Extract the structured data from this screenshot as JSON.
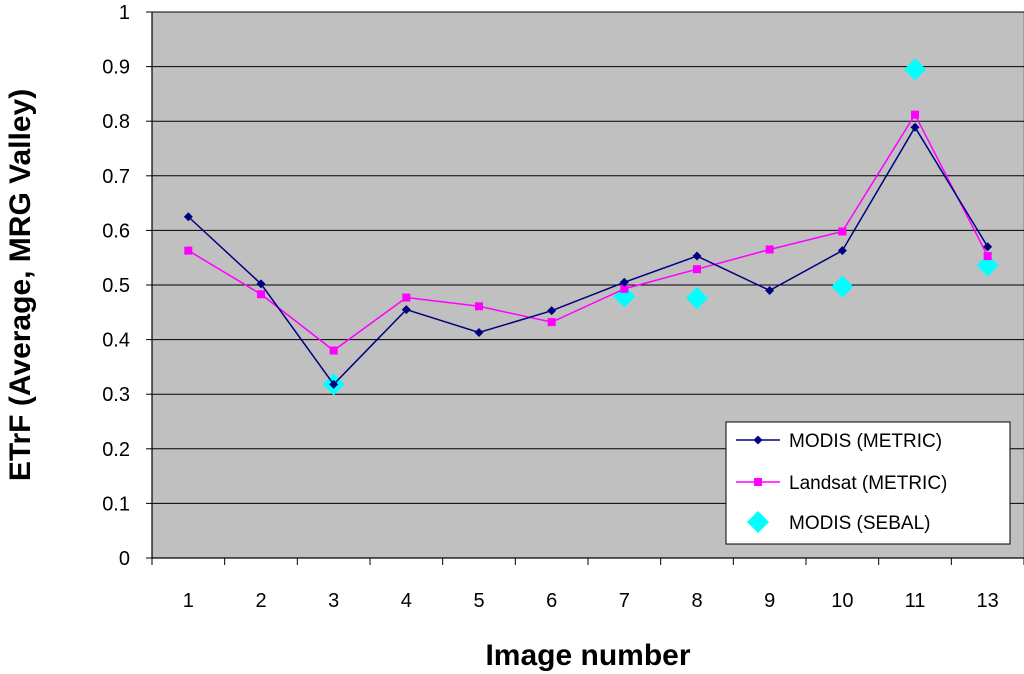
{
  "chart_data": {
    "type": "line",
    "title": "",
    "xlabel": "Image number",
    "ylabel": "ETrF (Average, MRG Valley)",
    "categories": [
      "1",
      "2",
      "3",
      "4",
      "5",
      "6",
      "7",
      "8",
      "9",
      "10",
      "11",
      "13"
    ],
    "yticks": [
      "0",
      "0.1",
      "0.2",
      "0.3",
      "0.4",
      "0.5",
      "0.6",
      "0.7",
      "0.8",
      "0.9",
      "1"
    ],
    "ylim": [
      0,
      1
    ],
    "grid": true,
    "legend_position": "bottom-right",
    "plot_background": "#c0c0c0",
    "series": [
      {
        "name": "MODIS (METRIC)",
        "color": "#000080",
        "marker": "diamond",
        "line": true,
        "values": [
          0.625,
          0.502,
          0.318,
          0.455,
          0.413,
          0.453,
          0.505,
          0.553,
          0.49,
          0.563,
          0.789,
          0.57
        ]
      },
      {
        "name": "Landsat (METRIC)",
        "color": "#ff00ff",
        "marker": "square",
        "line": true,
        "values": [
          0.563,
          0.483,
          0.38,
          0.477,
          0.461,
          0.432,
          0.493,
          0.529,
          0.565,
          0.598,
          0.812,
          0.553
        ]
      },
      {
        "name": "MODIS (SEBAL)",
        "color": "#00ffff",
        "marker": "large-diamond",
        "line": false,
        "values": [
          null,
          null,
          0.318,
          null,
          null,
          null,
          0.479,
          0.476,
          null,
          0.497,
          0.895,
          0.536
        ]
      }
    ]
  }
}
